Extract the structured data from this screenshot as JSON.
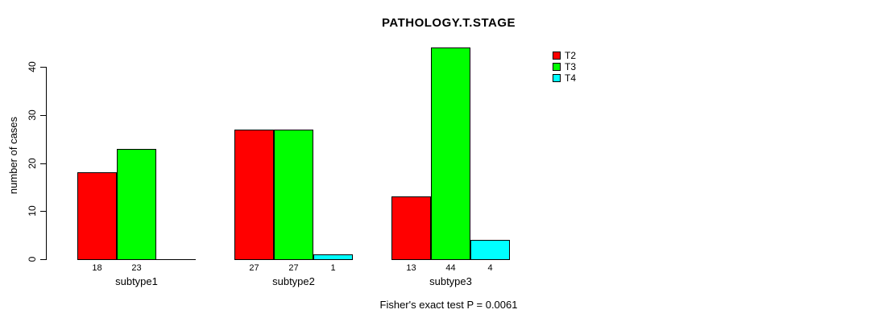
{
  "title": "PATHOLOGY.T.STAGE",
  "annotation": "Fisher's exact test P = 0.0061",
  "colors": {
    "T2": "#FF0000",
    "T3": "#00FF00",
    "T4": "#00FFFF",
    "axis": "#000000",
    "background": "#FFFFFF"
  },
  "chart_data": {
    "type": "bar",
    "title": "PATHOLOGY.T.STAGE",
    "xlabel": "",
    "ylabel": "number of cases",
    "ylim": [
      0,
      40
    ],
    "yticks": [
      0,
      10,
      20,
      30,
      40
    ],
    "grid": false,
    "legend_position": "top-right",
    "categories": [
      "subtype1",
      "subtype2",
      "subtype3"
    ],
    "series": [
      {
        "name": "T2",
        "color": "#FF0000",
        "values": [
          18,
          27,
          13
        ]
      },
      {
        "name": "T3",
        "color": "#00FF00",
        "values": [
          23,
          27,
          44
        ]
      },
      {
        "name": "T4",
        "color": "#00FFFF",
        "values": [
          0,
          1,
          4
        ]
      }
    ],
    "bar_value_labels": [
      [
        "18",
        "23",
        ""
      ],
      [
        "27",
        "27",
        "1"
      ],
      [
        "13",
        "44",
        "4"
      ]
    ],
    "annotation": "Fisher's exact test P = 0.0061"
  }
}
